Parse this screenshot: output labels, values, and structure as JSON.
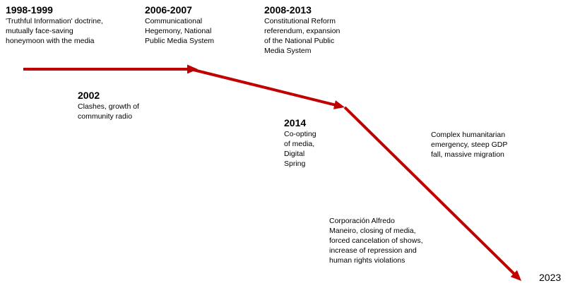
{
  "diagram": {
    "accent_color": "#c00000",
    "events": [
      {
        "id": "1998",
        "year": "1998-1999",
        "lines": [
          "'Truthful Information' doctrine,",
          "mutually face-saving",
          "honeymoon with the media"
        ]
      },
      {
        "id": "2006",
        "year": "2006-2007",
        "lines": [
          "Communicational",
          "Hegemony, National",
          "Public Media System"
        ]
      },
      {
        "id": "2008",
        "year": "2008-2013",
        "lines": [
          "Constitutional Reform",
          "referendum, expansion",
          "of the National Public",
          "Media System"
        ]
      },
      {
        "id": "2002",
        "year": "2002",
        "lines": [
          "Clashes, growth of",
          "community radio"
        ]
      },
      {
        "id": "2014",
        "year": "2014",
        "lines": [
          "Co-opting",
          "of media,",
          "Digital",
          "Spring"
        ]
      },
      {
        "id": "humanitarian",
        "year": "",
        "lines": [
          "Complex humanitarian",
          "emergency, steep GDP",
          "fall, massive migration"
        ]
      },
      {
        "id": "corporacion",
        "year": "",
        "lines": [
          "Corporación Alfredo",
          "Maneiro, closing of media,",
          "forced cancelation of shows,",
          "increase of repression and",
          "human rights violations"
        ]
      }
    ],
    "end_year": "2023"
  }
}
